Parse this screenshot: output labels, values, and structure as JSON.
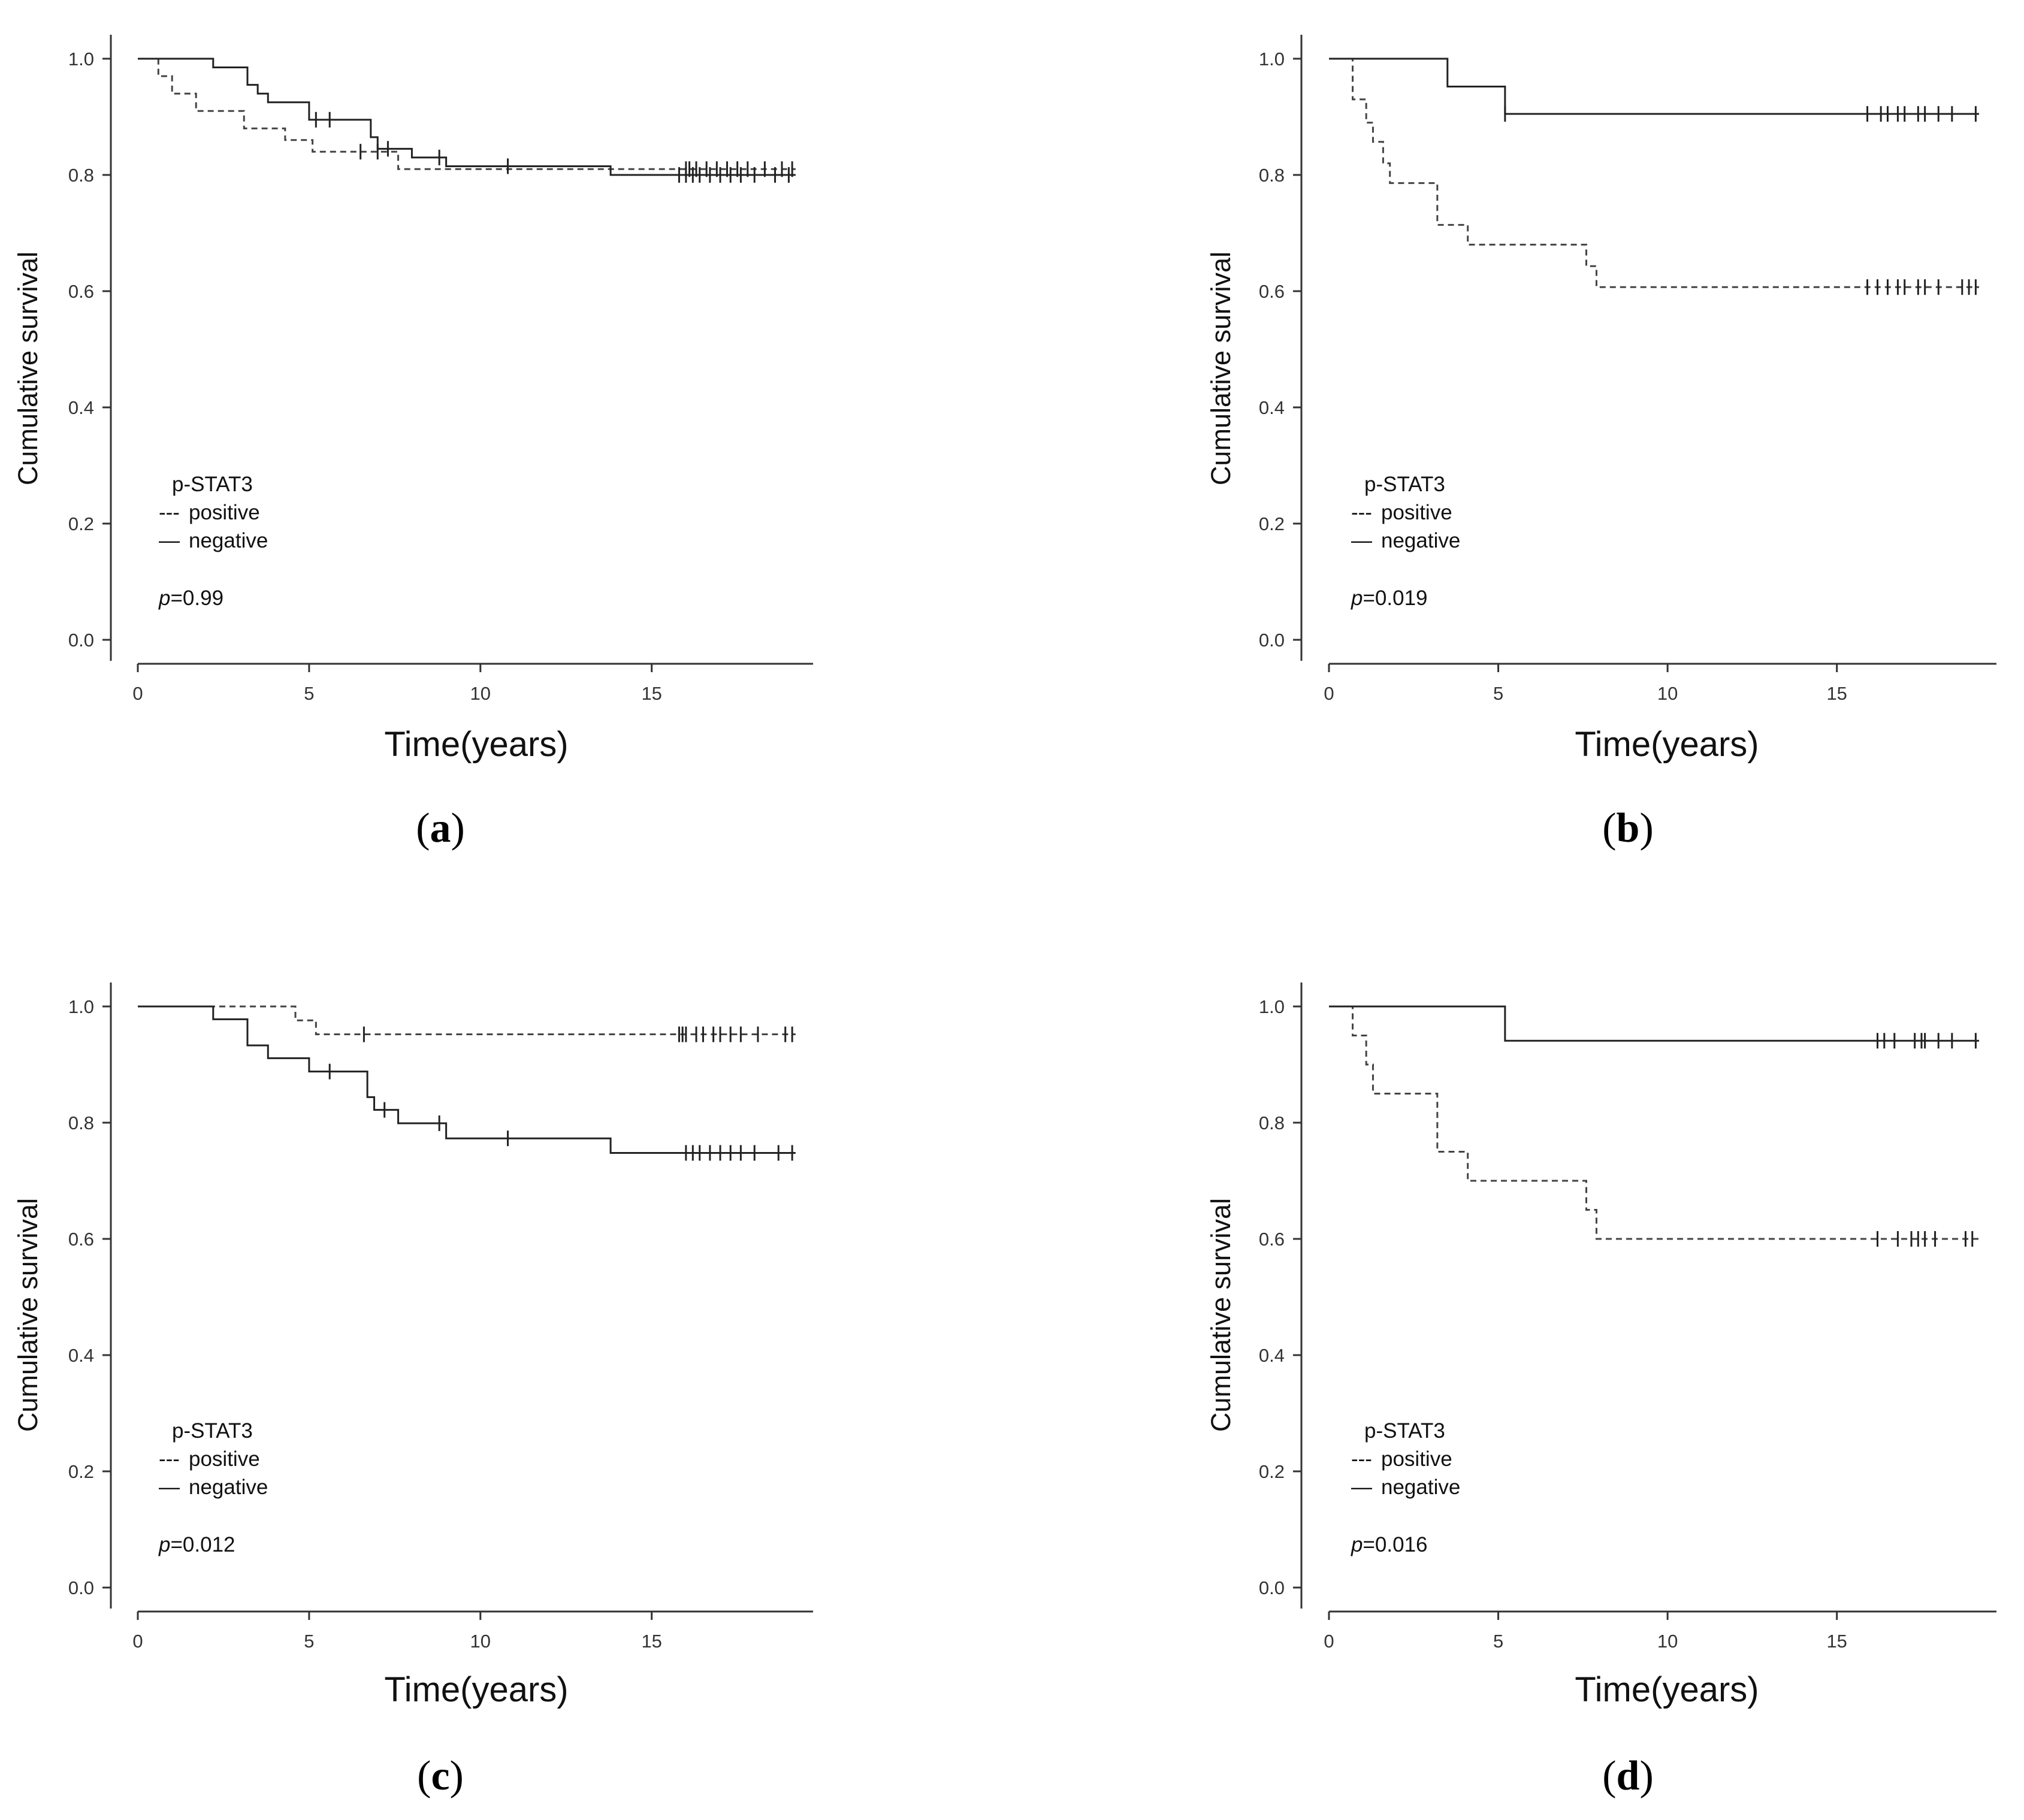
{
  "figure": {
    "panels": [
      "a",
      "b",
      "c",
      "d"
    ]
  },
  "chart_data": [
    {
      "type": "line",
      "panel_label": "a",
      "xlabel": "Time(years)",
      "ylabel": "Cumulative survival",
      "xlim": [
        0,
        19.5
      ],
      "ylim": [
        0,
        1.0
      ],
      "xticks": [
        0,
        5,
        10,
        15
      ],
      "yticks": [
        0.0,
        0.2,
        0.4,
        0.6,
        0.8,
        1.0
      ],
      "legend_title": "p-STAT3",
      "legend": [
        {
          "style": "dashed",
          "symbol": "---",
          "label": "positive"
        },
        {
          "style": "solid",
          "symbol": "—",
          "label": "negative"
        }
      ],
      "p_prefix": "p",
      "p_value": "=0.99",
      "series": [
        {
          "name": "positive",
          "style": "dashed",
          "steps": [
            [
              0,
              1.0
            ],
            [
              0.6,
              0.97
            ],
            [
              1.0,
              0.94
            ],
            [
              1.7,
              0.91
            ],
            [
              3.1,
              0.88
            ],
            [
              4.3,
              0.86
            ],
            [
              5.1,
              0.84
            ],
            [
              7.6,
              0.81
            ],
            [
              19.2,
              0.81
            ]
          ],
          "censored": [
            6.5,
            7.0,
            16.0,
            16.1,
            16.3,
            16.6,
            16.9,
            17.2,
            17.5,
            17.8,
            18.3,
            18.8,
            19.1
          ]
        },
        {
          "name": "negative",
          "style": "solid",
          "steps": [
            [
              0,
              1.0
            ],
            [
              2.2,
              0.985
            ],
            [
              3.2,
              0.955
            ],
            [
              3.5,
              0.94
            ],
            [
              3.8,
              0.925
            ],
            [
              5.0,
              0.895
            ],
            [
              6.8,
              0.865
            ],
            [
              7.0,
              0.845
            ],
            [
              8.0,
              0.83
            ],
            [
              9.0,
              0.815
            ],
            [
              13.8,
              0.8
            ],
            [
              19.2,
              0.8
            ]
          ],
          "censored": [
            5.2,
            5.6,
            7.3,
            8.8,
            10.8,
            15.8,
            16.0,
            16.2,
            16.4,
            16.7,
            17.0,
            17.3,
            17.6,
            18.0,
            18.6,
            19.0
          ]
        }
      ]
    },
    {
      "type": "line",
      "panel_label": "b",
      "xlabel": "Time(years)",
      "ylabel": "Cumulative survival",
      "xlim": [
        0,
        19.5
      ],
      "ylim": [
        0,
        1.0
      ],
      "xticks": [
        0,
        5,
        10,
        15
      ],
      "yticks": [
        0.0,
        0.2,
        0.4,
        0.6,
        0.8,
        1.0
      ],
      "legend_title": "p-STAT3",
      "legend": [
        {
          "style": "dashed",
          "symbol": "---",
          "label": "positive"
        },
        {
          "style": "solid",
          "symbol": "—",
          "label": "negative"
        }
      ],
      "p_prefix": "p",
      "p_value": "=0.019",
      "series": [
        {
          "name": "positive",
          "style": "dashed",
          "steps": [
            [
              0,
              1.0
            ],
            [
              0.7,
              0.93
            ],
            [
              1.1,
              0.89
            ],
            [
              1.3,
              0.857
            ],
            [
              1.6,
              0.82
            ],
            [
              1.8,
              0.786
            ],
            [
              3.2,
              0.714
            ],
            [
              4.1,
              0.68
            ],
            [
              7.6,
              0.643
            ],
            [
              7.9,
              0.607
            ],
            [
              19.2,
              0.607
            ]
          ],
          "censored": [
            15.9,
            16.2,
            16.5,
            16.8,
            17.0,
            17.4,
            17.6,
            18.0,
            18.7,
            18.9,
            19.1
          ]
        },
        {
          "name": "negative",
          "style": "solid",
          "steps": [
            [
              0,
              1.0
            ],
            [
              3.5,
              0.952
            ],
            [
              5.2,
              0.905
            ],
            [
              19.2,
              0.905
            ]
          ],
          "censored": [
            5.2,
            15.9,
            16.3,
            16.5,
            16.8,
            17.0,
            17.4,
            17.6,
            18.0,
            18.4,
            19.1
          ]
        }
      ]
    },
    {
      "type": "line",
      "panel_label": "c",
      "xlabel": "Time(years)",
      "ylabel": "Cumulative survival",
      "xlim": [
        0,
        19.5
      ],
      "ylim": [
        0,
        1.0
      ],
      "xticks": [
        0,
        5,
        10,
        15
      ],
      "yticks": [
        0.0,
        0.2,
        0.4,
        0.6,
        0.8,
        1.0
      ],
      "legend_title": "p-STAT3",
      "legend": [
        {
          "style": "dashed",
          "symbol": "---",
          "label": "positive"
        },
        {
          "style": "solid",
          "symbol": "—",
          "label": "negative"
        }
      ],
      "p_prefix": "p",
      "p_value": "=0.012",
      "series": [
        {
          "name": "positive",
          "style": "dashed",
          "steps": [
            [
              0,
              1.0
            ],
            [
              4.6,
              0.976
            ],
            [
              5.2,
              0.952
            ],
            [
              19.2,
              0.952
            ]
          ],
          "censored": [
            6.6,
            15.8,
            15.9,
            16.0,
            16.3,
            16.5,
            16.8,
            17.0,
            17.3,
            17.6,
            18.1,
            18.9,
            19.1
          ]
        },
        {
          "name": "negative",
          "style": "solid",
          "steps": [
            [
              0,
              1.0
            ],
            [
              2.2,
              0.978
            ],
            [
              3.2,
              0.933
            ],
            [
              3.8,
              0.911
            ],
            [
              5.0,
              0.888
            ],
            [
              6.7,
              0.844
            ],
            [
              6.9,
              0.822
            ],
            [
              7.6,
              0.799
            ],
            [
              9.0,
              0.773
            ],
            [
              13.8,
              0.748
            ],
            [
              19.2,
              0.748
            ]
          ],
          "censored": [
            5.6,
            7.2,
            8.8,
            10.8,
            16.0,
            16.2,
            16.4,
            16.7,
            17.0,
            17.3,
            17.6,
            18.0,
            18.7,
            19.1
          ]
        }
      ]
    },
    {
      "type": "line",
      "panel_label": "d",
      "xlabel": "Time(years)",
      "ylabel": "Cumulative survival",
      "xlim": [
        0,
        19.5
      ],
      "ylim": [
        0,
        1.0
      ],
      "xticks": [
        0,
        5,
        10,
        15
      ],
      "yticks": [
        0.0,
        0.2,
        0.4,
        0.6,
        0.8,
        1.0
      ],
      "legend_title": "p-STAT3",
      "legend": [
        {
          "style": "dashed",
          "symbol": "---",
          "label": "positive"
        },
        {
          "style": "solid",
          "symbol": "—",
          "label": "negative"
        }
      ],
      "p_prefix": "p",
      "p_value": "=0.016",
      "series": [
        {
          "name": "positive",
          "style": "dashed",
          "steps": [
            [
              0,
              1.0
            ],
            [
              0.7,
              0.95
            ],
            [
              1.1,
              0.9
            ],
            [
              1.3,
              0.85
            ],
            [
              3.2,
              0.75
            ],
            [
              4.1,
              0.7
            ],
            [
              7.6,
              0.65
            ],
            [
              7.9,
              0.6
            ],
            [
              19.2,
              0.6
            ]
          ],
          "censored": [
            16.2,
            16.8,
            17.2,
            17.4,
            17.6,
            17.9,
            18.8,
            19.0
          ]
        },
        {
          "name": "negative",
          "style": "solid",
          "steps": [
            [
              0,
              1.0
            ],
            [
              5.2,
              0.941
            ],
            [
              19.2,
              0.941
            ]
          ],
          "censored": [
            16.2,
            16.4,
            16.7,
            17.3,
            17.5,
            17.6,
            18.0,
            18.4,
            19.1
          ]
        }
      ]
    }
  ]
}
